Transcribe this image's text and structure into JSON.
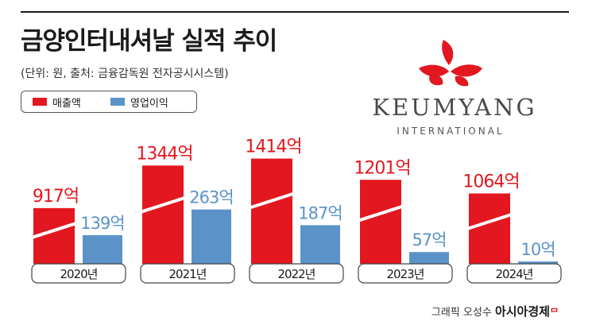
{
  "title": "금양인터내셔날 실적 추이",
  "subtitle": "(단위: 원, 출처: 금융감독원 전자공시시스템)",
  "logo": {
    "wordmark": "KEUMYANG",
    "sub": "INTERNATIONAL"
  },
  "credit": {
    "text": "그래픽 오성수",
    "brand": "아시아경제",
    "mark": "ᄆ"
  },
  "colors": {
    "revenue": "#e3171f",
    "operating_profit": "#5b93c9"
  },
  "chart_data": {
    "type": "bar",
    "title": "금양인터내셔날 실적 추이",
    "categories": [
      "2020년",
      "2021년",
      "2022년",
      "2023년",
      "2024년"
    ],
    "series": [
      {
        "name": "매출액",
        "values": [
          917,
          1344,
          1414,
          1201,
          1064
        ],
        "labels": [
          "917억",
          "1344억",
          "1414억",
          "1201억",
          "1064억"
        ],
        "broken_axis": true
      },
      {
        "name": "영업이익",
        "values": [
          139,
          263,
          187,
          57,
          10
        ],
        "labels": [
          "139억",
          "263억",
          "187억",
          "57억",
          "10억"
        ]
      }
    ],
    "legend_position": "top-left",
    "grid": false
  }
}
